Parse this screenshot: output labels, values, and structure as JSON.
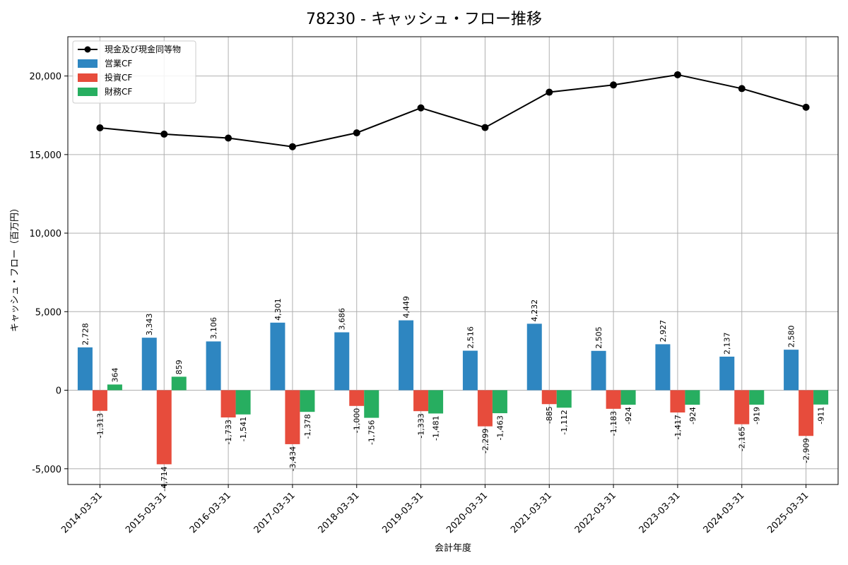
{
  "chart_data": {
    "type": "bar",
    "title": "78230 - キャッシュ・フロー推移",
    "xlabel": "会計年度",
    "ylabel": "キャッシュ・フロー（百万円）",
    "ylim": [
      -6000,
      22500
    ],
    "yticks": [
      -5000,
      0,
      5000,
      10000,
      15000,
      20000
    ],
    "ytick_labels": [
      "-5,000",
      "0",
      "5,000",
      "10,000",
      "15,000",
      "20,000"
    ],
    "grid": true,
    "legend_position": "top-left",
    "categories": [
      "2014-03-31",
      "2015-03-31",
      "2016-03-31",
      "2017-03-31",
      "2018-03-31",
      "2019-03-31",
      "2020-03-31",
      "2021-03-31",
      "2022-03-31",
      "2023-03-31",
      "2024-03-31",
      "2025-03-31"
    ],
    "series": [
      {
        "name": "営業CF",
        "kind": "bar",
        "color": "#2e86c1",
        "values": [
          2728,
          3343,
          3106,
          4301,
          3686,
          4449,
          2516,
          4232,
          2505,
          2927,
          2137,
          2580
        ],
        "labels": [
          "2,728",
          "3,343",
          "3,106",
          "4,301",
          "3,686",
          "4,449",
          "2,516",
          "4,232",
          "2,505",
          "2,927",
          "2,137",
          "2,580"
        ]
      },
      {
        "name": "投資CF",
        "kind": "bar",
        "color": "#e74c3c",
        "values": [
          -1313,
          -4714,
          -1733,
          -3434,
          -1000,
          -1333,
          -2299,
          -885,
          -1183,
          -1417,
          -2165,
          -2909
        ],
        "labels": [
          "-1,313",
          "-4,714",
          "-1,733",
          "-3,434",
          "-1,000",
          "-1,333",
          "-2,299",
          "-885",
          "-1,183",
          "-1,417",
          "-2,165",
          "-2,909"
        ]
      },
      {
        "name": "財務CF",
        "kind": "bar",
        "color": "#27ae60",
        "values": [
          364,
          859,
          -1541,
          -1378,
          -1756,
          -1481,
          -1463,
          -1112,
          -924,
          -924,
          -919,
          -911
        ],
        "labels": [
          "364",
          "859",
          "-1,541",
          "-1,378",
          "-1,756",
          "-1,481",
          "-1,463",
          "-1,112",
          "-924",
          "-924",
          "-919",
          "-911"
        ]
      },
      {
        "name": "現金及び現金同等物",
        "kind": "line",
        "color": "#000000",
        "values": [
          16700,
          16300,
          16050,
          15500,
          16380,
          17970,
          16720,
          18970,
          19430,
          20080,
          19200,
          18010
        ]
      }
    ]
  }
}
